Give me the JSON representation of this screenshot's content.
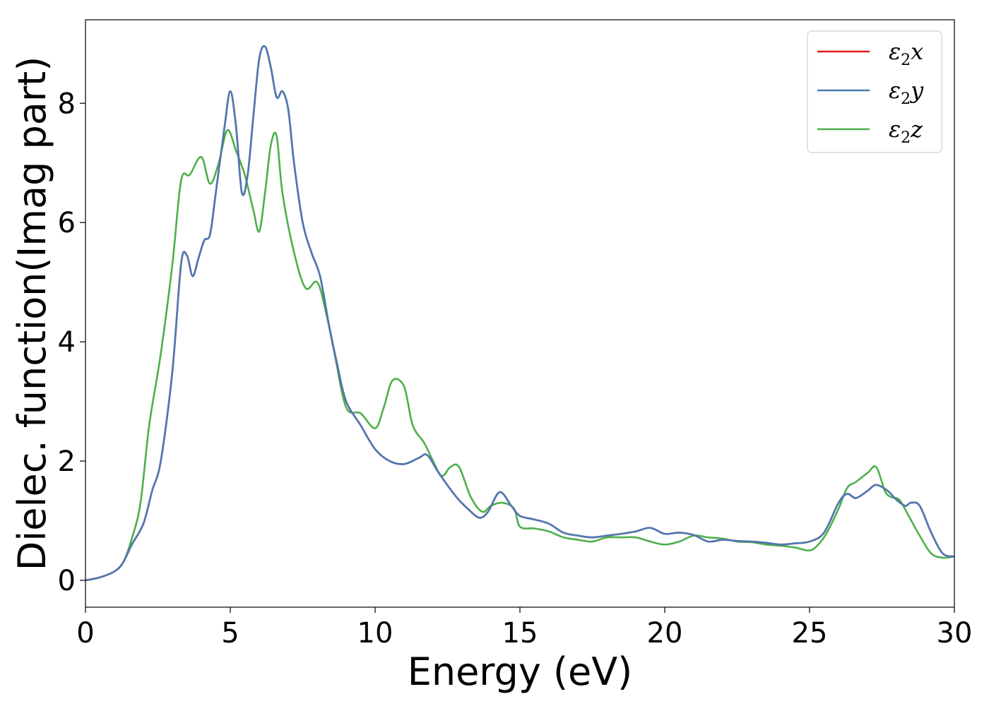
{
  "chart_data": {
    "type": "line",
    "title": "",
    "xlabel": "Energy (eV)",
    "ylabel": "Dielec. function(Imag part)",
    "xlim": [
      0,
      30
    ],
    "ylim": [
      -0.45,
      9.4
    ],
    "xticks": [
      0,
      5,
      10,
      15,
      20,
      25,
      30
    ],
    "yticks": [
      0,
      2,
      4,
      6,
      8
    ],
    "grid": false,
    "legend_position": "top-right",
    "series": [
      {
        "name": "ε2x",
        "legend_label": {
          "base": "ε",
          "sub": "2",
          "axis": "x"
        },
        "color": "#e41a1c",
        "x": [
          0,
          0.5,
          1.0,
          1.3,
          1.6,
          2.0,
          2.3,
          2.6,
          3.0,
          3.3,
          3.5,
          3.7,
          3.9,
          4.1,
          4.3,
          4.5,
          4.8,
          5.0,
          5.2,
          5.4,
          5.6,
          5.8,
          6.0,
          6.2,
          6.4,
          6.6,
          6.8,
          7.0,
          7.2,
          7.5,
          7.8,
          8.1,
          8.4,
          8.7,
          9.0,
          9.5,
          10.0,
          10.5,
          11.0,
          11.5,
          11.8,
          12.2,
          12.8,
          13.2,
          13.6,
          13.9,
          14.3,
          14.7,
          15.0,
          15.5,
          16.0,
          16.5,
          17.0,
          17.5,
          18.0,
          18.5,
          19.0,
          19.5,
          20.0,
          20.5,
          21.0,
          21.5,
          22.0,
          22.5,
          23.0,
          23.5,
          24.0,
          24.5,
          25.0,
          25.5,
          26.0,
          26.3,
          26.6,
          27.0,
          27.3,
          27.7,
          28.0,
          28.3,
          28.5,
          28.8,
          29.2,
          29.6,
          30.0
        ],
        "y": [
          0.0,
          0.05,
          0.15,
          0.3,
          0.6,
          0.95,
          1.5,
          2.0,
          3.5,
          5.3,
          5.45,
          5.1,
          5.4,
          5.7,
          5.8,
          6.5,
          7.6,
          8.2,
          7.6,
          6.5,
          6.8,
          7.8,
          8.75,
          8.95,
          8.6,
          8.1,
          8.2,
          7.9,
          7.0,
          6.0,
          5.5,
          5.1,
          4.3,
          3.6,
          3.0,
          2.6,
          2.2,
          2.0,
          1.95,
          2.05,
          2.1,
          1.8,
          1.4,
          1.2,
          1.05,
          1.15,
          1.48,
          1.25,
          1.08,
          1.02,
          0.95,
          0.8,
          0.75,
          0.72,
          0.75,
          0.78,
          0.82,
          0.88,
          0.78,
          0.8,
          0.76,
          0.65,
          0.68,
          0.66,
          0.65,
          0.63,
          0.6,
          0.62,
          0.65,
          0.8,
          1.3,
          1.45,
          1.38,
          1.5,
          1.6,
          1.5,
          1.35,
          1.25,
          1.3,
          1.25,
          0.8,
          0.45,
          0.4
        ]
      },
      {
        "name": "ε2y",
        "legend_label": {
          "base": "ε",
          "sub": "2",
          "axis": "y"
        },
        "color": "#4a7ab5",
        "x": [
          0,
          0.5,
          1.0,
          1.3,
          1.6,
          2.0,
          2.3,
          2.6,
          3.0,
          3.3,
          3.5,
          3.7,
          3.9,
          4.1,
          4.3,
          4.5,
          4.8,
          5.0,
          5.2,
          5.4,
          5.6,
          5.8,
          6.0,
          6.2,
          6.4,
          6.6,
          6.8,
          7.0,
          7.2,
          7.5,
          7.8,
          8.1,
          8.4,
          8.7,
          9.0,
          9.5,
          10.0,
          10.5,
          11.0,
          11.5,
          11.8,
          12.2,
          12.8,
          13.2,
          13.6,
          13.9,
          14.3,
          14.7,
          15.0,
          15.5,
          16.0,
          16.5,
          17.0,
          17.5,
          18.0,
          18.5,
          19.0,
          19.5,
          20.0,
          20.5,
          21.0,
          21.5,
          22.0,
          22.5,
          23.0,
          23.5,
          24.0,
          24.5,
          25.0,
          25.5,
          26.0,
          26.3,
          26.6,
          27.0,
          27.3,
          27.7,
          28.0,
          28.3,
          28.5,
          28.8,
          29.2,
          29.6,
          30.0
        ],
        "y": [
          0.0,
          0.05,
          0.15,
          0.3,
          0.6,
          0.95,
          1.5,
          2.0,
          3.5,
          5.3,
          5.45,
          5.1,
          5.4,
          5.7,
          5.8,
          6.5,
          7.6,
          8.2,
          7.6,
          6.5,
          6.8,
          7.8,
          8.75,
          8.95,
          8.6,
          8.1,
          8.2,
          7.9,
          7.0,
          6.0,
          5.5,
          5.1,
          4.3,
          3.6,
          3.0,
          2.6,
          2.2,
          2.0,
          1.95,
          2.05,
          2.1,
          1.8,
          1.4,
          1.2,
          1.05,
          1.15,
          1.48,
          1.25,
          1.08,
          1.02,
          0.95,
          0.8,
          0.75,
          0.72,
          0.75,
          0.78,
          0.82,
          0.88,
          0.78,
          0.8,
          0.76,
          0.65,
          0.68,
          0.66,
          0.65,
          0.63,
          0.6,
          0.62,
          0.65,
          0.8,
          1.3,
          1.45,
          1.38,
          1.5,
          1.6,
          1.5,
          1.35,
          1.25,
          1.3,
          1.25,
          0.8,
          0.45,
          0.4
        ]
      },
      {
        "name": "ε2z",
        "legend_label": {
          "base": "ε",
          "sub": "2",
          "axis": "z"
        },
        "color": "#4daf4a",
        "x": [
          0,
          0.5,
          1.0,
          1.3,
          1.6,
          1.9,
          2.2,
          2.6,
          3.0,
          3.3,
          3.6,
          4.0,
          4.3,
          4.6,
          4.9,
          5.2,
          5.5,
          5.8,
          6.0,
          6.2,
          6.4,
          6.6,
          6.8,
          7.2,
          7.6,
          8.0,
          8.3,
          8.6,
          9.0,
          9.5,
          10.0,
          10.3,
          10.6,
          11.0,
          11.3,
          11.7,
          12.0,
          12.3,
          12.6,
          12.9,
          13.3,
          13.7,
          14.0,
          14.4,
          14.8,
          15.0,
          15.5,
          16.0,
          16.5,
          17.0,
          17.5,
          18.0,
          18.5,
          19.0,
          19.5,
          20.0,
          20.5,
          21.0,
          21.5,
          22.0,
          22.5,
          23.0,
          23.5,
          24.0,
          24.5,
          25.0,
          25.3,
          25.6,
          26.0,
          26.3,
          26.6,
          27.0,
          27.3,
          27.6,
          27.8,
          28.1,
          28.4,
          28.8,
          29.2,
          29.6,
          30.0
        ],
        "y": [
          0.0,
          0.05,
          0.15,
          0.3,
          0.7,
          1.3,
          2.6,
          3.8,
          5.3,
          6.7,
          6.8,
          7.1,
          6.65,
          7.0,
          7.55,
          7.2,
          6.8,
          6.2,
          5.85,
          6.5,
          7.3,
          7.45,
          6.5,
          5.5,
          4.9,
          5.0,
          4.5,
          3.8,
          2.9,
          2.8,
          2.55,
          2.9,
          3.35,
          3.25,
          2.6,
          2.3,
          2.0,
          1.75,
          1.9,
          1.9,
          1.4,
          1.15,
          1.25,
          1.3,
          1.2,
          0.9,
          0.87,
          0.82,
          0.72,
          0.68,
          0.65,
          0.72,
          0.72,
          0.72,
          0.65,
          0.6,
          0.65,
          0.75,
          0.72,
          0.7,
          0.65,
          0.64,
          0.6,
          0.58,
          0.55,
          0.5,
          0.6,
          0.8,
          1.2,
          1.55,
          1.65,
          1.8,
          1.9,
          1.5,
          1.4,
          1.35,
          1.1,
          0.75,
          0.45,
          0.38,
          0.4
        ]
      }
    ]
  }
}
